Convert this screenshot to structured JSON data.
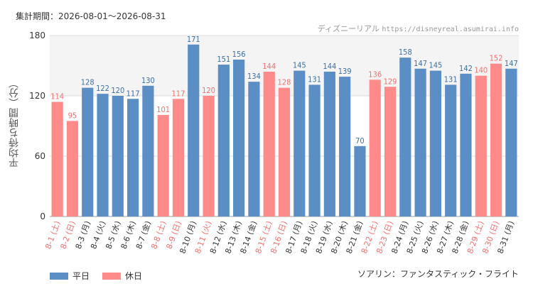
{
  "header": {
    "period_label": "集計期間：2026-08-01〜2026-08-31",
    "site_name": "ディズニーリアル",
    "site_url": "https://disneyreal.asumirai.info"
  },
  "footer": {
    "attraction": "ソアリン：ファンタスティック・フライト"
  },
  "colors": {
    "weekday": "#5b8ec4",
    "holiday": "#ff8a8a",
    "weekday_label": "#3d6fa3",
    "holiday_label": "#f07070"
  },
  "chart_data": {
    "type": "bar",
    "ylabel": "平均待ち時間（分）",
    "ylim": [
      0,
      180
    ],
    "yticks": [
      0,
      60,
      120,
      180
    ],
    "grid": true,
    "legend_position": "bottom-left",
    "legend": [
      {
        "key": "weekday",
        "label": "平日"
      },
      {
        "key": "holiday",
        "label": "休日"
      }
    ],
    "categories": [
      "8-1 (土)",
      "8-2 (日)",
      "8-3 (月)",
      "8-4 (火)",
      "8-5 (水)",
      "8-6 (木)",
      "8-7 (金)",
      "8-8 (土)",
      "8-9 (日)",
      "8-10 (月)",
      "8-11 (火)",
      "8-12 (水)",
      "8-13 (木)",
      "8-14 (金)",
      "8-15 (土)",
      "8-16 (日)",
      "8-17 (月)",
      "8-18 (火)",
      "8-19 (水)",
      "8-20 (木)",
      "8-21 (金)",
      "8-22 (土)",
      "8-23 (日)",
      "8-24 (月)",
      "8-25 (火)",
      "8-26 (水)",
      "8-27 (木)",
      "8-28 (金)",
      "8-29 (土)",
      "8-30 (日)",
      "8-31 (月)"
    ],
    "values": [
      114,
      95,
      128,
      122,
      120,
      117,
      130,
      101,
      117,
      171,
      120,
      151,
      156,
      134,
      144,
      128,
      145,
      131,
      144,
      139,
      70,
      136,
      129,
      158,
      147,
      145,
      131,
      142,
      140,
      152,
      147
    ],
    "day_type": [
      "holiday",
      "holiday",
      "weekday",
      "weekday",
      "weekday",
      "weekday",
      "weekday",
      "holiday",
      "holiday",
      "weekday",
      "holiday",
      "weekday",
      "weekday",
      "weekday",
      "holiday",
      "holiday",
      "weekday",
      "weekday",
      "weekday",
      "weekday",
      "weekday",
      "holiday",
      "holiday",
      "weekday",
      "weekday",
      "weekday",
      "weekday",
      "weekday",
      "holiday",
      "holiday",
      "weekday"
    ]
  }
}
